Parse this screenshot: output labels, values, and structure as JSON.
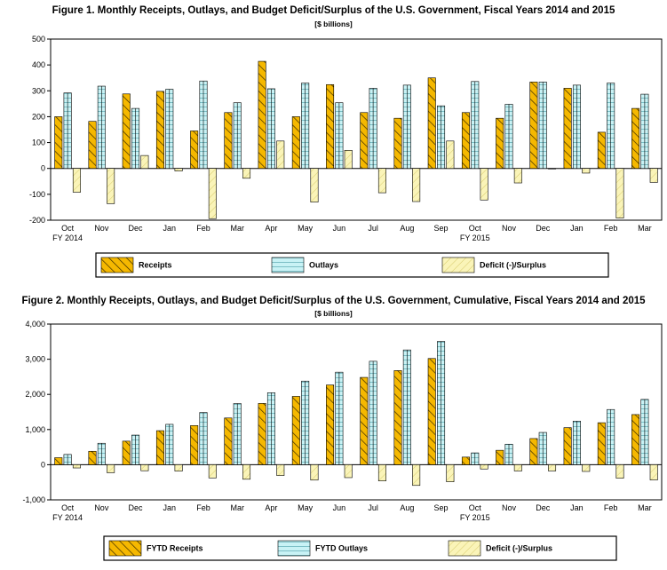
{
  "chart_data": [
    {
      "type": "bar",
      "title": "Figure 1. Monthly Receipts, Outlays, and Budget Deficit/Surplus of the U.S. Government, Fiscal Years 2014 and 2015",
      "subtitle": "[$ billions]",
      "categories": [
        "Oct",
        "Nov",
        "Dec",
        "Jan",
        "Feb",
        "Mar",
        "Apr",
        "May",
        "Jun",
        "Jul",
        "Aug",
        "Sep",
        "Oct",
        "Nov",
        "Dec",
        "Jan",
        "Feb",
        "Mar"
      ],
      "category_sublabels": {
        "0": "FY 2014",
        "12": "FY 2015"
      },
      "ylim": [
        -200,
        500
      ],
      "yticks": [
        -200,
        -100,
        0,
        100,
        200,
        300,
        400,
        500
      ],
      "ytick_labels": [
        "-200",
        "-100",
        "0",
        "100",
        "200",
        "300",
        "400",
        "500"
      ],
      "series": [
        {
          "name": "Receipts",
          "color": "#f5b800",
          "values": [
            200,
            182,
            288,
            298,
            145,
            216,
            414,
            200,
            324,
            216,
            194,
            350,
            216,
            194,
            334,
            310,
            140,
            232
          ]
        },
        {
          "name": "Outlays",
          "color": "#c8f2f5",
          "values": [
            292,
            318,
            232,
            306,
            338,
            254,
            308,
            330,
            254,
            310,
            322,
            242,
            336,
            248,
            334,
            322,
            330,
            287
          ]
        },
        {
          "name": "Deficit (-)/Surplus",
          "color": "#f8f0a8",
          "values": [
            -92,
            -136,
            50,
            -10,
            -194,
            -38,
            106,
            -130,
            70,
            -94,
            -128,
            106,
            -122,
            -56,
            -2,
            -18,
            -192,
            -54
          ]
        }
      ],
      "legend_position": "bottom"
    },
    {
      "type": "bar",
      "title": "Figure 2. Monthly Receipts, Outlays, and Budget Deficit/Surplus of the U.S. Government, Cumulative, Fiscal Years 2014 and 2015",
      "subtitle": "[$ billions]",
      "categories": [
        "Oct",
        "Nov",
        "Dec",
        "Jan",
        "Feb",
        "Mar",
        "Apr",
        "May",
        "Jun",
        "Jul",
        "Aug",
        "Sep",
        "Oct",
        "Nov",
        "Dec",
        "Jan",
        "Feb",
        "Mar"
      ],
      "category_sublabels": {
        "0": "FY 2014",
        "12": "FY 2015"
      },
      "ylim": [
        -1000,
        4000
      ],
      "yticks": [
        -1000,
        0,
        1000,
        2000,
        3000,
        4000
      ],
      "ytick_labels": [
        "-1,000",
        "0",
        "1,000",
        "2,000",
        "3,000",
        "4,000"
      ],
      "series": [
        {
          "name": "FYTD Receipts",
          "color": "#f5b800",
          "values": [
            200,
            382,
            670,
            968,
            1113,
            1329,
            1743,
            1943,
            2267,
            2483,
            2677,
            3021,
            216,
            410,
            744,
            1054,
            1194,
            1426
          ]
        },
        {
          "name": "FYTD Outlays",
          "color": "#c8f2f5",
          "values": [
            292,
            610,
            842,
            1148,
            1486,
            1740,
            2048,
            2378,
            2632,
            2942,
            3264,
            3506,
            336,
            584,
            918,
            1240,
            1570,
            1857
          ]
        },
        {
          "name": "Deficit (-)/Surplus",
          "color": "#f8f0a8",
          "values": [
            -92,
            -228,
            -172,
            -182,
            -376,
            -414,
            -308,
            -438,
            -368,
            -462,
            -590,
            -486,
            -122,
            -178,
            -176,
            -192,
            -384,
            -434
          ]
        }
      ],
      "legend_position": "bottom"
    }
  ]
}
